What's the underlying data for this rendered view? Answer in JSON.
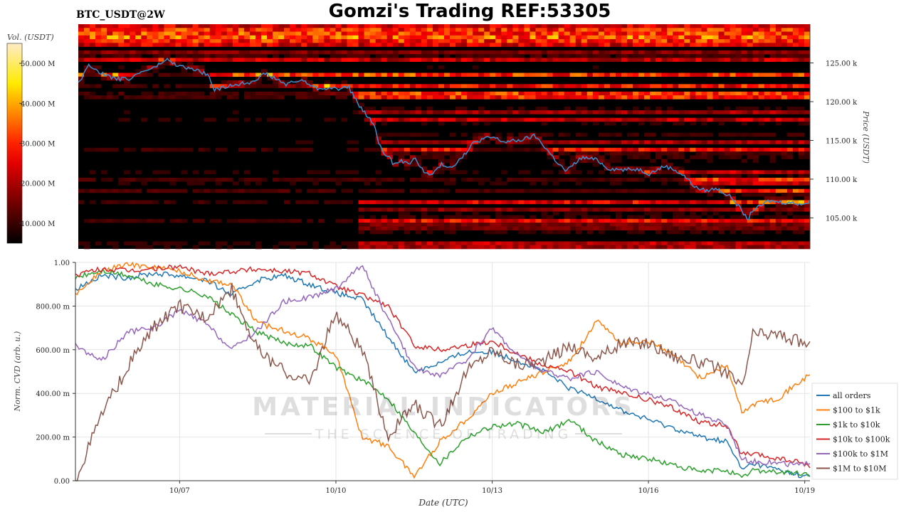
{
  "header": {
    "symbol": "BTC_USDT@2W",
    "title": "Gomzi's Trading REF:53305"
  },
  "colorbar": {
    "label": "Vol. (USDT)",
    "ticks": [
      "10.000 M",
      "20.000 M",
      "30.000 M",
      "40.000 M",
      "50.000 M"
    ],
    "tick_values": [
      10,
      20,
      30,
      40,
      50
    ],
    "range": [
      5,
      55
    ]
  },
  "watermark": {
    "line1": "MATERIAL INDICATORS",
    "line2": "THE SCIENCE OF TRADING"
  },
  "chart_data": [
    {
      "type": "heatmap",
      "name": "orderbook",
      "ylabel": "Price (USDT)",
      "ylim": [
        101000,
        130000
      ],
      "ytick_values": [
        105000,
        110000,
        115000,
        120000,
        125000
      ],
      "ytick_labels": [
        "105.00 k",
        "110.00 k",
        "115.00 k",
        "120.00 k",
        "125.00 k"
      ],
      "xlim": [
        0,
        14.1
      ],
      "price_series": {
        "color": "#3a8ccd",
        "x": [
          0,
          0.2,
          0.5,
          0.8,
          1.0,
          1.2,
          1.5,
          1.7,
          1.8,
          2.0,
          2.2,
          2.5,
          2.6,
          2.8,
          3.0,
          3.3,
          3.6,
          3.8,
          4.0,
          4.3,
          4.6,
          4.8,
          5.0,
          5.2,
          5.4,
          5.7,
          5.8,
          5.9,
          6.0,
          6.1,
          6.2,
          6.35,
          6.5,
          6.7,
          6.8,
          7.0,
          7.2,
          7.5,
          7.6,
          7.8,
          8.0,
          8.2,
          8.5,
          8.8,
          9.0,
          9.2,
          9.4,
          9.7,
          10.0,
          10.2,
          10.5,
          10.8,
          11.0,
          11.3,
          11.5,
          11.7,
          11.9,
          12.1,
          12.3,
          12.6,
          12.8,
          12.9,
          13.0,
          13.1,
          13.3,
          13.6,
          14.0,
          14.1
        ],
        "y": [
          122300,
          124800,
          123400,
          122900,
          123000,
          123800,
          124500,
          125500,
          125000,
          124500,
          124200,
          123500,
          121500,
          121800,
          122200,
          122500,
          123600,
          123000,
          122200,
          122800,
          121700,
          121800,
          121600,
          122000,
          119600,
          117000,
          114500,
          113200,
          112700,
          111700,
          112500,
          112000,
          112600,
          110700,
          110500,
          111900,
          111600,
          113500,
          114600,
          115200,
          115400,
          114800,
          115000,
          115600,
          114100,
          112400,
          111000,
          112800,
          112500,
          111400,
          111200,
          111300,
          110700,
          111700,
          111200,
          110300,
          108900,
          108500,
          108800,
          107600,
          105800,
          104700,
          106100,
          106300,
          107200,
          107000,
          106800,
          107100
        ]
      }
    },
    {
      "type": "line",
      "name": "cvd",
      "xlabel": "Date (UTC)",
      "ylabel": "Norm. CVD (arb. u.)",
      "ylim": [
        0,
        1
      ],
      "xlim": [
        0,
        14.1
      ],
      "ytick_values": [
        0,
        0.2,
        0.4,
        0.6,
        0.8,
        1.0
      ],
      "ytick_labels": [
        "0.00",
        "200.00 m",
        "400.00 m",
        "600.00 m",
        "800.00 m",
        "1.00"
      ],
      "xtick_values": [
        2,
        5,
        8,
        11,
        14
      ],
      "xtick_labels": [
        "10/07",
        "10/10",
        "10/13",
        "10/16",
        "10/19"
      ],
      "x": [
        0,
        0.5,
        1,
        1.5,
        2,
        2.5,
        3,
        3.5,
        4,
        4.5,
        5,
        5.5,
        6,
        6.5,
        7,
        7.5,
        8,
        8.5,
        9,
        9.5,
        10,
        10.5,
        11,
        11.5,
        12,
        12.5,
        12.8,
        13,
        13.5,
        14,
        14.1
      ],
      "series": [
        {
          "name": "all orders",
          "color": "#1f77b4",
          "values": [
            0.88,
            0.94,
            0.93,
            0.95,
            0.94,
            0.92,
            0.85,
            0.92,
            0.94,
            0.9,
            0.86,
            0.83,
            0.66,
            0.5,
            0.54,
            0.59,
            0.59,
            0.55,
            0.5,
            0.42,
            0.38,
            0.32,
            0.28,
            0.24,
            0.2,
            0.18,
            0.05,
            0.08,
            0.05,
            0.02,
            0.02
          ]
        },
        {
          "name": "$100 to $1k",
          "color": "#ff7f0e",
          "values": [
            0.85,
            0.96,
            0.99,
            0.98,
            0.96,
            0.92,
            0.9,
            0.72,
            0.69,
            0.65,
            0.58,
            0.2,
            0.16,
            0.02,
            0.18,
            0.28,
            0.4,
            0.45,
            0.5,
            0.55,
            0.73,
            0.63,
            0.64,
            0.57,
            0.47,
            0.53,
            0.31,
            0.35,
            0.38,
            0.47,
            0.48
          ]
        },
        {
          "name": "$1k to $10k",
          "color": "#2ca02c",
          "values": [
            0.93,
            0.96,
            0.94,
            0.9,
            0.88,
            0.85,
            0.76,
            0.68,
            0.63,
            0.62,
            0.52,
            0.46,
            0.38,
            0.22,
            0.08,
            0.2,
            0.25,
            0.26,
            0.22,
            0.28,
            0.18,
            0.12,
            0.1,
            0.07,
            0.04,
            0.05,
            0.01,
            0.05,
            0.04,
            0.03,
            0.03
          ]
        },
        {
          "name": "$10k to $100k",
          "color": "#d62728",
          "values": [
            0.94,
            0.97,
            0.96,
            0.97,
            0.98,
            0.95,
            0.96,
            0.97,
            0.96,
            0.95,
            0.89,
            0.85,
            0.8,
            0.62,
            0.6,
            0.62,
            0.64,
            0.58,
            0.53,
            0.5,
            0.43,
            0.4,
            0.37,
            0.33,
            0.27,
            0.25,
            0.12,
            0.12,
            0.1,
            0.08,
            0.06
          ]
        },
        {
          "name": "$100k to $1M",
          "color": "#9467bd",
          "values": [
            0.62,
            0.55,
            0.68,
            0.7,
            0.78,
            0.72,
            0.6,
            0.69,
            0.82,
            0.84,
            0.88,
            0.99,
            0.74,
            0.52,
            0.48,
            0.55,
            0.7,
            0.57,
            0.5,
            0.47,
            0.5,
            0.43,
            0.4,
            0.36,
            0.3,
            0.26,
            0.1,
            0.09,
            0.08,
            0.07,
            0.09
          ]
        },
        {
          "name": "$1M to $10M",
          "color": "#8c564b",
          "values": [
            0.0,
            0.3,
            0.52,
            0.7,
            0.8,
            0.75,
            0.88,
            0.6,
            0.5,
            0.45,
            0.77,
            0.6,
            0.2,
            0.35,
            0.25,
            0.5,
            0.6,
            0.53,
            0.55,
            0.62,
            0.56,
            0.63,
            0.63,
            0.57,
            0.54,
            0.5,
            0.42,
            0.67,
            0.67,
            0.63,
            0.62
          ]
        }
      ],
      "legend_placement": "right"
    }
  ]
}
